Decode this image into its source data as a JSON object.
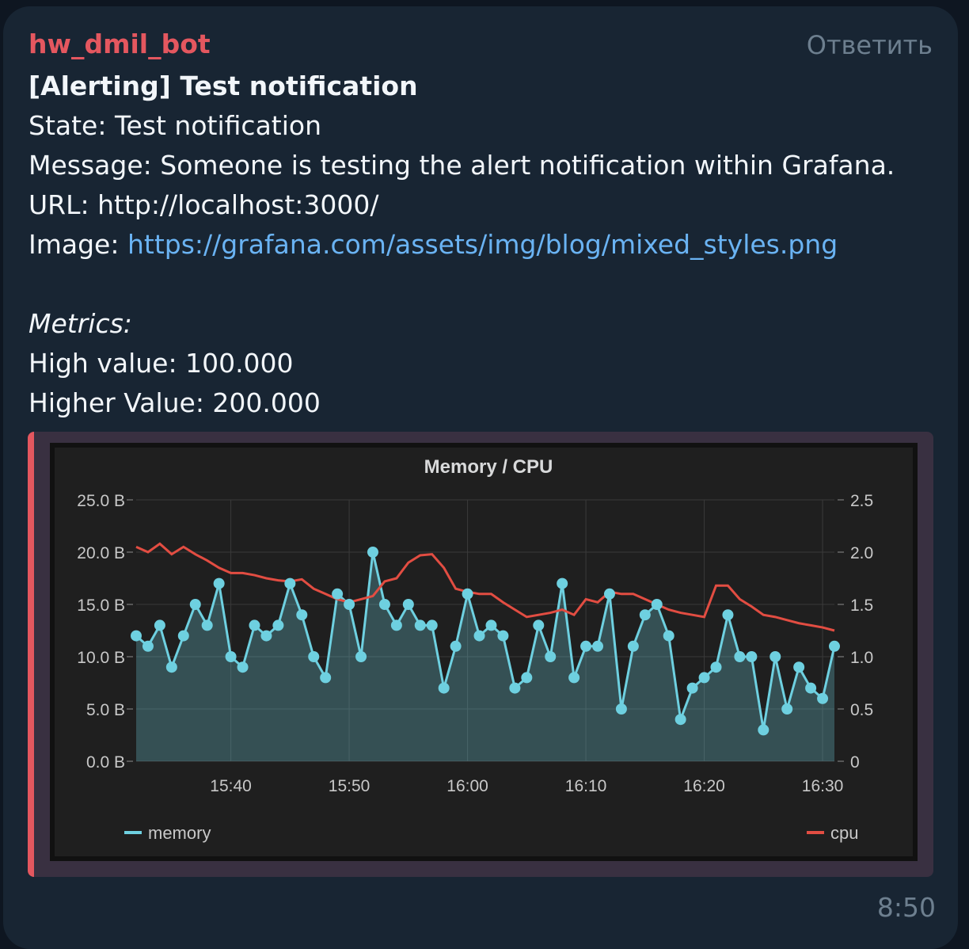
{
  "message": {
    "sender": "hw_dmil_bot",
    "reply_label": "Ответить",
    "title": "[Alerting] Test notification",
    "state_line": "State: Test notification",
    "message_line": "Message: Someone is testing the alert notification within Grafana.",
    "url_line": "URL: http://localhost:3000/",
    "image_label": "Image: ",
    "image_link": "https://grafana.com/assets/img/blog/mixed_styles.png",
    "metrics_heading": "Metrics:",
    "high_value_line": "High value: 100.000",
    "higher_value_line": "Higher Value: 200.000",
    "time": "8:50"
  },
  "colors": {
    "sender": "#e4575f",
    "link": "#6ab3f3",
    "memory": "#6ed0e0",
    "cpu": "#e24d42"
  },
  "chart_data": {
    "type": "line",
    "title": "Memory / CPU",
    "x_ticks": [
      "15:40",
      "15:50",
      "16:00",
      "16:10",
      "16:20",
      "16:30"
    ],
    "x_tick_minutes": [
      40,
      50,
      60,
      70,
      80,
      90
    ],
    "xlim_minutes": [
      32,
      91
    ],
    "y_left": {
      "ticks": [
        "0.0 B",
        "5.0 B",
        "10.0 B",
        "15.0 B",
        "20.0 B",
        "25.0 B"
      ],
      "range": [
        0,
        25
      ]
    },
    "y_right": {
      "ticks": [
        "0",
        "0.5",
        "1.0",
        "1.5",
        "2.0",
        "2.5"
      ],
      "range": [
        0,
        2.5
      ]
    },
    "grid": true,
    "legend": {
      "left": "memory",
      "right": "cpu",
      "placement": "bottom"
    },
    "series": [
      {
        "name": "memory",
        "axis": "left",
        "style": "area-points",
        "x_minutes": [
          32,
          33,
          34,
          35,
          36,
          37,
          38,
          39,
          40,
          41,
          42,
          43,
          44,
          45,
          46,
          47,
          48,
          49,
          50,
          51,
          52,
          53,
          54,
          55,
          56,
          57,
          58,
          59,
          60,
          61,
          62,
          63,
          64,
          65,
          66,
          67,
          68,
          69,
          70,
          71,
          72,
          73,
          74,
          75,
          76,
          77,
          78,
          79,
          80,
          81,
          82,
          83,
          84,
          85,
          86,
          87,
          88,
          89,
          90,
          91
        ],
        "values": [
          12,
          11,
          13,
          9,
          12,
          15,
          13,
          17,
          10,
          9,
          13,
          12,
          13,
          17,
          14,
          10,
          8,
          16,
          15,
          10,
          20,
          15,
          13,
          15,
          13,
          13,
          7,
          11,
          16,
          12,
          13,
          12,
          7,
          8,
          13,
          10,
          17,
          8,
          11,
          11,
          16,
          5,
          11,
          14,
          15,
          12,
          4,
          7,
          8,
          9,
          14,
          10,
          10,
          3,
          10,
          5,
          9,
          7,
          6,
          11
        ]
      },
      {
        "name": "cpu",
        "axis": "right",
        "style": "line",
        "x_minutes": [
          32,
          33,
          34,
          35,
          36,
          37,
          38,
          39,
          40,
          41,
          42,
          43,
          44,
          45,
          46,
          47,
          48,
          49,
          50,
          51,
          52,
          53,
          54,
          55,
          56,
          57,
          58,
          59,
          60,
          61,
          62,
          63,
          64,
          65,
          66,
          67,
          68,
          69,
          70,
          71,
          72,
          73,
          74,
          75,
          76,
          77,
          78,
          79,
          80,
          81,
          82,
          83,
          84,
          85,
          86,
          87,
          88,
          89,
          90,
          91
        ],
        "values": [
          2.05,
          2.0,
          2.08,
          1.98,
          2.05,
          1.98,
          1.92,
          1.85,
          1.8,
          1.8,
          1.78,
          1.75,
          1.73,
          1.72,
          1.74,
          1.65,
          1.6,
          1.55,
          1.52,
          1.55,
          1.58,
          1.72,
          1.75,
          1.9,
          1.97,
          1.98,
          1.85,
          1.65,
          1.62,
          1.6,
          1.6,
          1.52,
          1.45,
          1.38,
          1.4,
          1.42,
          1.45,
          1.4,
          1.55,
          1.52,
          1.62,
          1.6,
          1.6,
          1.55,
          1.5,
          1.45,
          1.42,
          1.4,
          1.38,
          1.68,
          1.68,
          1.55,
          1.48,
          1.4,
          1.38,
          1.35,
          1.32,
          1.3,
          1.28,
          1.25
        ]
      }
    ]
  }
}
